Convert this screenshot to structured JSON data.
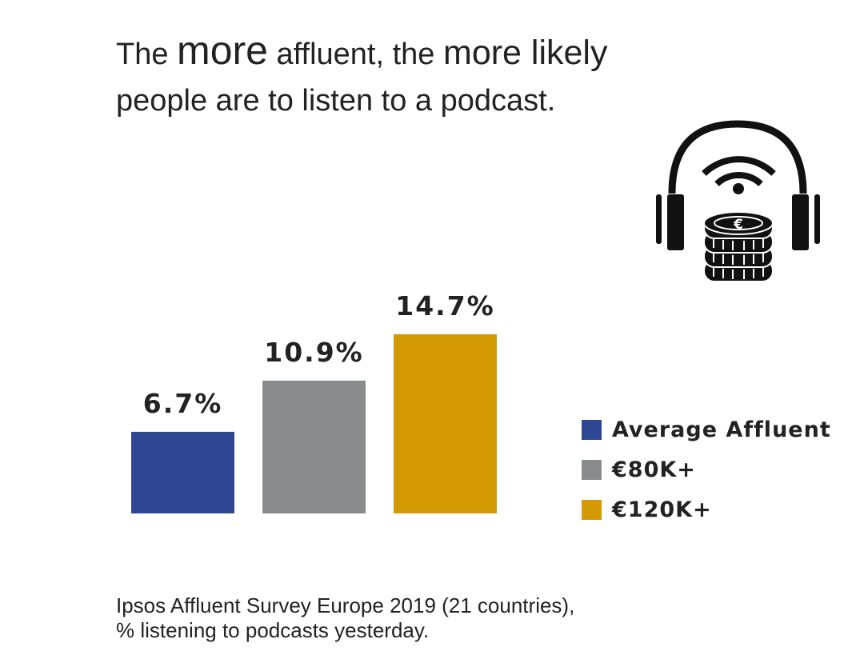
{
  "title": {
    "w1": "The ",
    "w2": "more",
    "w3": " affluent, the ",
    "w4": "more likely",
    "line2": "people are to listen to a podcast."
  },
  "chart_data": {
    "type": "bar",
    "categories": [
      "Average Affluent",
      "€80K+",
      "€120K+"
    ],
    "values": [
      6.7,
      10.9,
      14.7
    ],
    "value_labels": [
      "6.7%",
      "10.9%",
      "14.7%"
    ],
    "colors": [
      "#2f4693",
      "#898c8f",
      "#d49a04"
    ],
    "ylim": [
      0,
      14.7
    ],
    "title": "The more affluent, the more likely people are to listen to a podcast.",
    "xlabel": "",
    "ylabel": "",
    "legend_position": "right"
  },
  "legend": [
    {
      "label": "Average Affluent",
      "color": "#2f4693"
    },
    {
      "label": "€80K+",
      "color": "#898c8f"
    },
    {
      "label": "€120K+",
      "color": "#d49a04"
    }
  ],
  "icon": {
    "name": "podcast-headphones-coins-icon",
    "coin_symbol": "€"
  },
  "source": {
    "line1": "Ipsos Affluent Survey Europe 2019 (21 countries),",
    "line2": "% listening to podcasts yesterday."
  }
}
